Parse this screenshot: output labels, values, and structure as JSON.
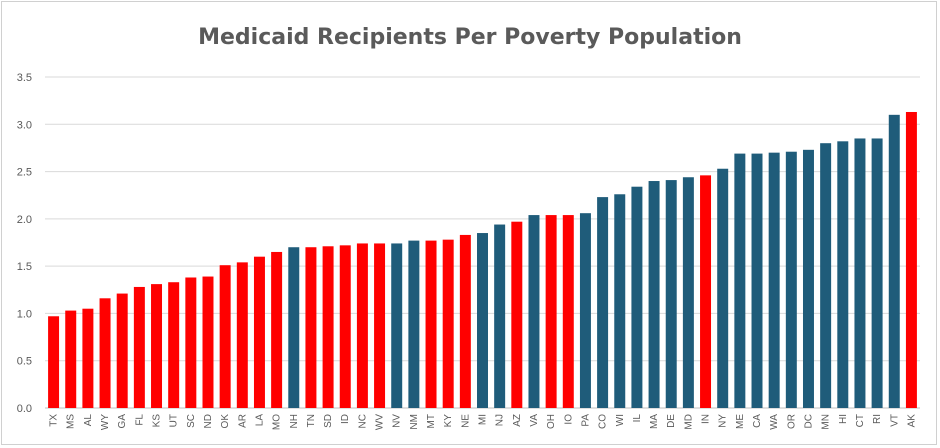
{
  "chart_data": {
    "type": "bar",
    "title": "Medicaid Recipients Per Poverty Population",
    "xlabel": "",
    "ylabel": "",
    "ylim": [
      0,
      3.5
    ],
    "yticks": [
      0.0,
      0.5,
      1.0,
      1.5,
      2.0,
      2.5,
      3.0,
      3.5
    ],
    "ytick_labels": [
      "0.0",
      "0.5",
      "1.0",
      "1.5",
      "2.0",
      "2.5",
      "3.0",
      "3.5"
    ],
    "grid": true,
    "legend": "none",
    "colors": {
      "red": "#ff0000",
      "blue": "#1f5c7a"
    },
    "categories": [
      "TX",
      "MS",
      "AL",
      "WY",
      "GA",
      "FL",
      "KS",
      "UT",
      "SC",
      "ND",
      "OK",
      "AR",
      "LA",
      "MO",
      "NH",
      "TN",
      "SD",
      "ID",
      "NC",
      "WV",
      "NV",
      "NM",
      "MT",
      "KY",
      "NE",
      "MI",
      "NJ",
      "AZ",
      "VA",
      "OH",
      "IO",
      "PA",
      "CO",
      "WI",
      "IL",
      "MA",
      "DE",
      "MD",
      "IN",
      "NY",
      "ME",
      "CA",
      "WA",
      "OR",
      "DC",
      "MN",
      "HI",
      "CT",
      "RI",
      "VT",
      "AK"
    ],
    "values": [
      0.97,
      1.03,
      1.05,
      1.16,
      1.21,
      1.28,
      1.31,
      1.33,
      1.38,
      1.39,
      1.51,
      1.54,
      1.6,
      1.65,
      1.7,
      1.7,
      1.71,
      1.72,
      1.74,
      1.74,
      1.74,
      1.77,
      1.77,
      1.78,
      1.83,
      1.85,
      1.94,
      1.97,
      2.04,
      2.04,
      2.04,
      2.06,
      2.23,
      2.26,
      2.34,
      2.4,
      2.41,
      2.44,
      2.46,
      2.53,
      2.69,
      2.69,
      2.7,
      2.71,
      2.73,
      2.8,
      2.82,
      2.85,
      2.85,
      3.1,
      3.13
    ],
    "bar_colors": [
      "red",
      "red",
      "red",
      "red",
      "red",
      "red",
      "red",
      "red",
      "red",
      "red",
      "red",
      "red",
      "red",
      "red",
      "blue",
      "red",
      "red",
      "red",
      "red",
      "red",
      "blue",
      "blue",
      "red",
      "red",
      "red",
      "blue",
      "blue",
      "red",
      "blue",
      "red",
      "red",
      "blue",
      "blue",
      "blue",
      "blue",
      "blue",
      "blue",
      "blue",
      "red",
      "blue",
      "blue",
      "blue",
      "blue",
      "blue",
      "blue",
      "blue",
      "blue",
      "blue",
      "blue",
      "blue",
      "red"
    ]
  }
}
